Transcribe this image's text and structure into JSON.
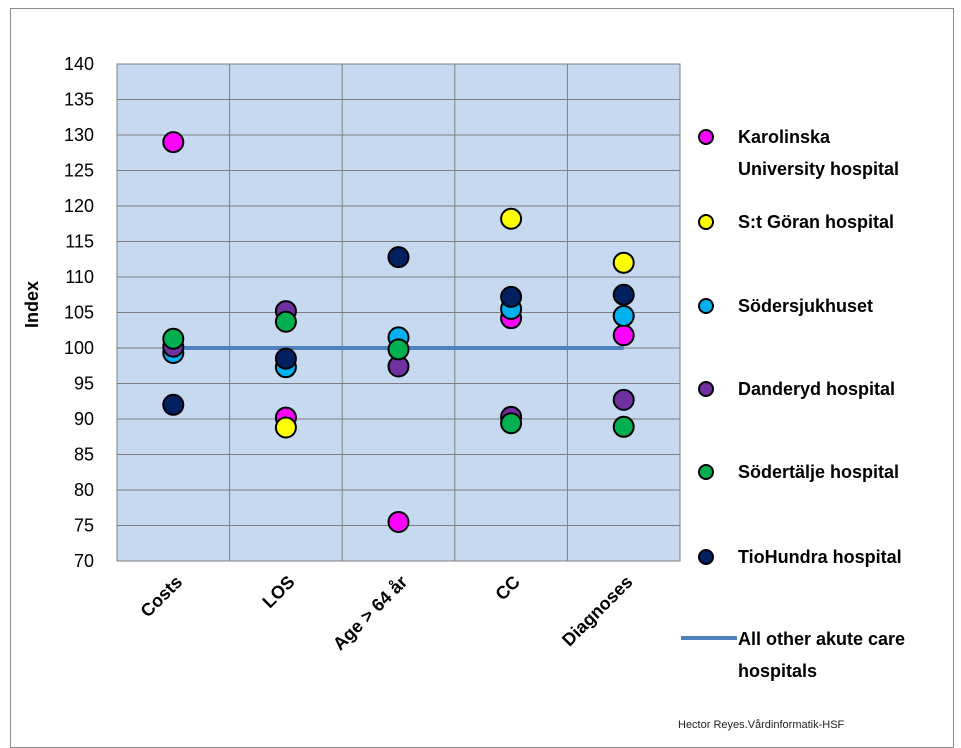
{
  "chart_data": {
    "type": "scatter",
    "ylabel": "Index",
    "xlabel": "",
    "title": "",
    "ylim": [
      70,
      140
    ],
    "ytick_step": 5,
    "grid": true,
    "legend_position": "right",
    "categories": [
      "Costs",
      "LOS",
      "Age > 64 år",
      "CC",
      "Diagnoses"
    ],
    "series": [
      {
        "name": "Karolinska University hospital",
        "color": "#ff00ff",
        "values": [
          129,
          90.2,
          75.5,
          104.2,
          101.8
        ]
      },
      {
        "name": "S:t Göran hospital",
        "color": "#ffff00",
        "values": [
          null,
          88.8,
          null,
          118.2,
          112
        ]
      },
      {
        "name": "Södersjukhuset",
        "color": "#00b0f0",
        "values": [
          99.3,
          97.3,
          101.5,
          105.5,
          104.5
        ]
      },
      {
        "name": "Danderyd hospital",
        "color": "#7030a0",
        "values": [
          100.2,
          105.2,
          97.4,
          90.3,
          92.7
        ]
      },
      {
        "name": "Södertälje hospital",
        "color": "#00b050",
        "values": [
          101.3,
          103.7,
          99.8,
          89.4,
          88.9
        ]
      },
      {
        "name": "TioHundra hospital",
        "color": "#002060",
        "values": [
          92,
          98.5,
          112.8,
          107.2,
          107.5
        ]
      }
    ],
    "reference_line": {
      "name": "All other akute care hospitals",
      "color": "#4f81bd",
      "value": 100
    }
  },
  "legend_labels": [
    "Karolinska\nUniversity hospital",
    "S:t Göran hospital",
    "Södersjukhuset",
    "Danderyd hospital",
    "Södertälje hospital",
    "TioHundra hospital",
    "All other akute care\nhospitals"
  ],
  "footer": "Hector Reyes.Vårdinformatik-HSF"
}
